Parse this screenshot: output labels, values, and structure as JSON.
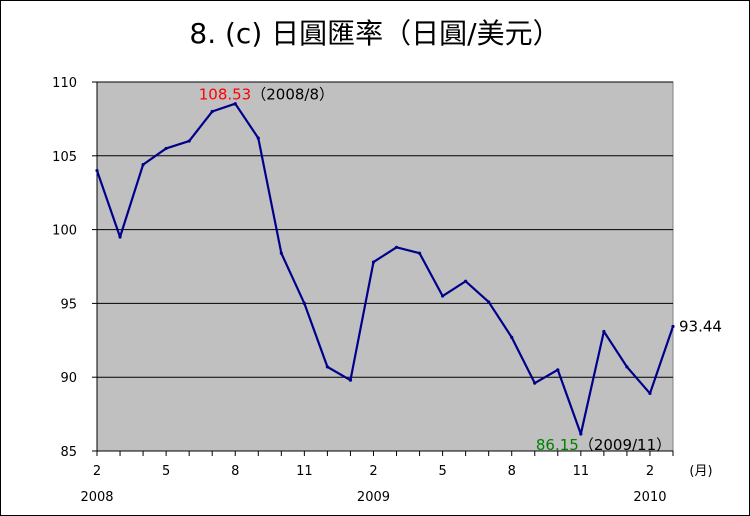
{
  "chart_data": {
    "type": "line",
    "title": "8. (c)  日圓匯率（日圓/美元）",
    "x_unit_label": "(月)",
    "x": [
      "2008/2",
      "2008/3",
      "2008/4",
      "2008/5",
      "2008/6",
      "2008/7",
      "2008/8",
      "2008/9",
      "2008/10",
      "2008/11",
      "2008/12",
      "2009/1",
      "2009/2",
      "2009/3",
      "2009/4",
      "2009/5",
      "2009/6",
      "2009/7",
      "2009/8",
      "2009/9",
      "2009/10",
      "2009/11",
      "2009/12",
      "2010/1",
      "2010/2",
      "2010/3"
    ],
    "x_tick_labels": [
      {
        "label": "2",
        "index": 0
      },
      {
        "label": "5",
        "index": 3
      },
      {
        "label": "8",
        "index": 6
      },
      {
        "label": "11",
        "index": 9
      },
      {
        "label": "2",
        "index": 12
      },
      {
        "label": "5",
        "index": 15
      },
      {
        "label": "8",
        "index": 18
      },
      {
        "label": "11",
        "index": 21
      },
      {
        "label": "2",
        "index": 24
      }
    ],
    "year_labels": [
      {
        "label": "2008",
        "index": 0
      },
      {
        "label": "2009",
        "index": 12
      },
      {
        "label": "2010",
        "index": 24
      }
    ],
    "series": [
      {
        "color": "#00008B",
        "values": [
          104.0,
          99.5,
          104.4,
          105.5,
          106.0,
          108.0,
          108.53,
          106.2,
          98.4,
          95.0,
          90.7,
          89.8,
          97.8,
          98.8,
          98.4,
          95.5,
          96.5,
          95.1,
          92.7,
          89.6,
          90.5,
          86.15,
          93.1,
          90.7,
          88.9,
          93.44
        ]
      }
    ],
    "ylim": [
      85,
      110
    ],
    "y_ticks": [
      "110",
      "105",
      "100",
      "95",
      "90",
      "85"
    ],
    "grid": true,
    "plot_background": "#C0C0C0",
    "annotations": {
      "max": {
        "index": 6,
        "value": "108.53",
        "date": "（2008/8）",
        "color": "#FF0000"
      },
      "min": {
        "index": 21,
        "value": "86.15",
        "date": "（2009/11）",
        "color": "#008000"
      },
      "last": {
        "index": 25,
        "value": "93.44",
        "color": "#000000"
      }
    }
  }
}
